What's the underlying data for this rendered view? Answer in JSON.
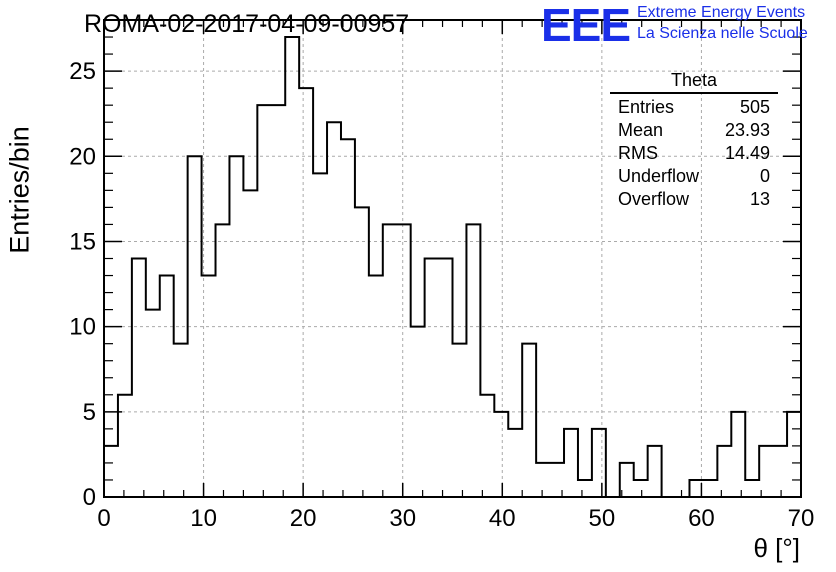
{
  "title": "ROMA-02-2017-04-09-00957",
  "logo": {
    "mark": "EEE",
    "line1": "Extreme Energy Events",
    "line2": "La Scienza nelle Scuole",
    "color": "#1a2fe8"
  },
  "stats_box": {
    "name": "Theta",
    "rows": [
      {
        "label": "Entries",
        "value": "505"
      },
      {
        "label": "Mean",
        "value": "23.93"
      },
      {
        "label": "RMS",
        "value": "14.49"
      },
      {
        "label": "Underflow",
        "value": "0"
      },
      {
        "label": "Overflow",
        "value": "13"
      }
    ]
  },
  "chart_data": {
    "type": "histogram",
    "xlabel": "θ [°]",
    "ylabel": "Entries/bin",
    "xlim": [
      0,
      70
    ],
    "ylim": [
      0,
      28
    ],
    "xticks": [
      0,
      10,
      20,
      30,
      40,
      50,
      60,
      70
    ],
    "yticks": [
      0,
      5,
      10,
      15,
      20,
      25
    ],
    "grid": true,
    "bin_width": 1.4,
    "bin_start": 0,
    "values": [
      3,
      6,
      14,
      11,
      13,
      9,
      20,
      13,
      16,
      20,
      18,
      23,
      23,
      27,
      24,
      19,
      22,
      21,
      17,
      13,
      16,
      16,
      10,
      14,
      14,
      9,
      16,
      6,
      5,
      4,
      9,
      2,
      2,
      4,
      1,
      4,
      0,
      2,
      1,
      3,
      0,
      0,
      1,
      1,
      3,
      5,
      1,
      3,
      3,
      5
    ]
  }
}
